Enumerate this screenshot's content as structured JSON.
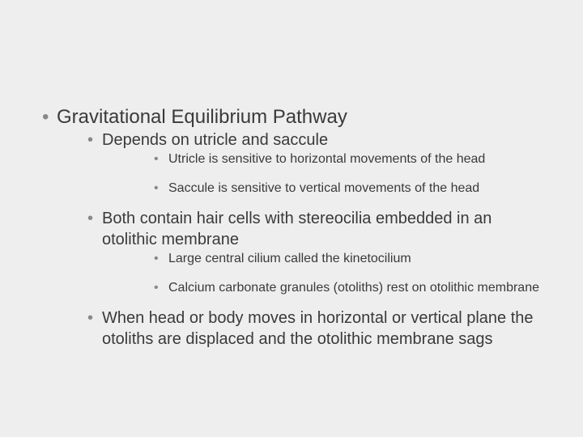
{
  "background_color": "#eeeeee",
  "text_color": "#3a3a3a",
  "bullet_color": "#888888",
  "font_family": "Arial",
  "outline": {
    "lvl1": [
      {
        "text": "Gravitational Equilibrium Pathway",
        "lvl2": [
          {
            "text": "Depends on utricle and saccule",
            "lvl3": [
              {
                "text": "Utricle is sensitive to horizontal movements of the head"
              },
              {
                "text": "Saccule is sensitive to vertical movements of the head"
              }
            ]
          },
          {
            "text": "Both contain hair cells with stereocilia embedded in an otolithic membrane",
            "lvl3": [
              {
                "text": "Large central cilium called the kinetocilium"
              },
              {
                "text": "Calcium carbonate granules (otoliths) rest on otolithic membrane"
              }
            ]
          },
          {
            "text": "When head or body moves in horizontal or vertical plane the otoliths are displaced and the otolithic membrane sags",
            "lvl3": []
          }
        ]
      }
    ]
  }
}
